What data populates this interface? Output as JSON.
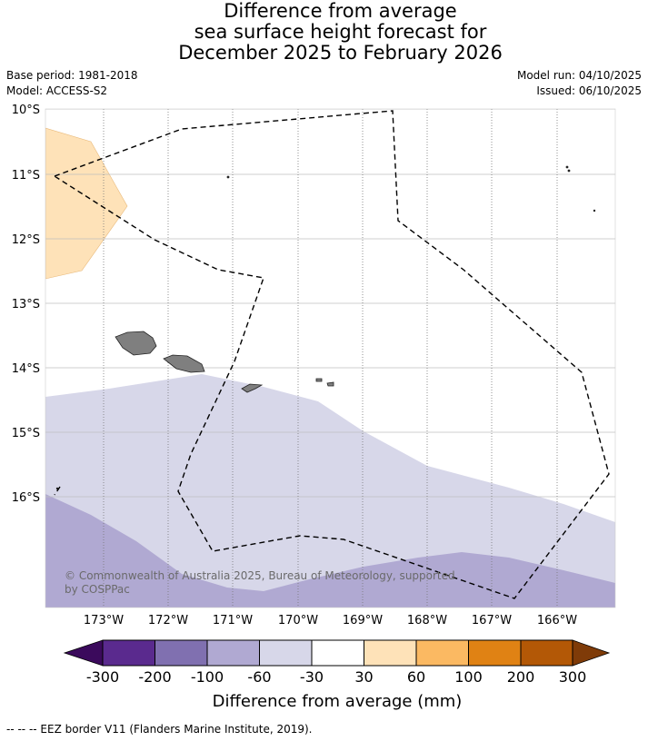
{
  "title": {
    "line1": "Difference from average",
    "line2": "sea surface height forecast for",
    "line3": "December 2025 to February 2026"
  },
  "meta": {
    "base_period": "Base period: 1981-2018",
    "model": "Model: ACCESS-S2",
    "model_run": "Model run: 04/10/2025",
    "issued": "Issued: 06/10/2025"
  },
  "map": {
    "lat_labels": [
      "10°S",
      "11°S",
      "12°S",
      "13°S",
      "14°S",
      "15°S",
      "16°S"
    ],
    "lon_labels": [
      "173°W",
      "172°W",
      "171°W",
      "170°W",
      "169°W",
      "168°W",
      "167°W",
      "166°W"
    ],
    "copyright": "© Commonwealth of Australia 2025, Bureau of Meteorology, supported",
    "copyright2": "by COSPPac",
    "zone_colors": {
      "light": "#d7d7e9",
      "mid": "#b0a9d2",
      "positive": "#fee2b8",
      "land": "#7f7f7f"
    }
  },
  "colorbar": {
    "tick_labels": [
      "-300",
      "-200",
      "-100",
      "-60",
      "-30",
      "30",
      "60",
      "100",
      "200",
      "300"
    ],
    "colors": [
      "#5a2a8e",
      "#8070b0",
      "#b0a9d2",
      "#d7d7e9",
      "#ffffff",
      "#fee2b8",
      "#fbb962",
      "#e08214",
      "#b35806"
    ],
    "under_color": "#3b0a5c",
    "over_color": "#7f3b08",
    "label": "Difference from average (mm)"
  },
  "footer": {
    "legend_text": "--  --  -- EEZ border V11 (Flanders Marine Institute, 2019)."
  }
}
